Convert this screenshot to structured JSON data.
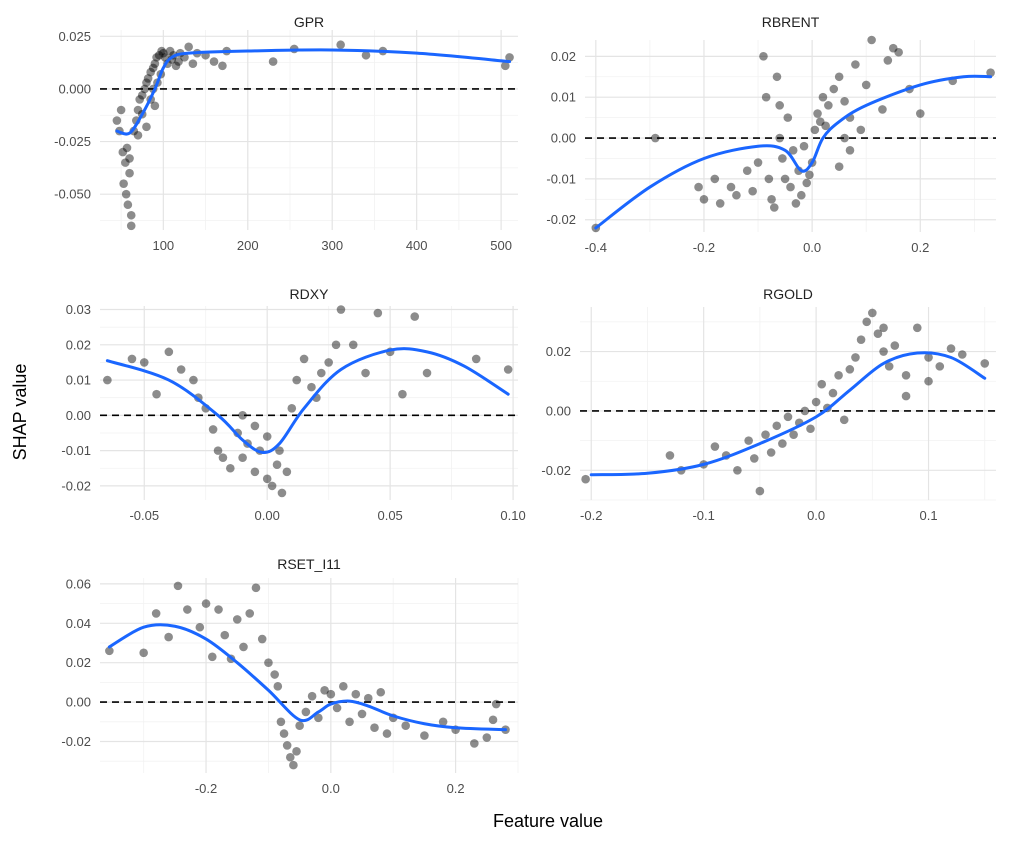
{
  "xlabel": "Feature value",
  "ylabel": "SHAP value",
  "chart_data": [
    {
      "type": "scatter",
      "title": "GPR",
      "xlim": [
        25,
        520
      ],
      "ylim": [
        -0.067,
        0.028
      ],
      "xticks": [
        100,
        200,
        300,
        400,
        500
      ],
      "yticks": [
        -0.05,
        -0.025,
        0,
        0.025
      ],
      "ytick_labels": [
        "-0.050",
        "-0.025",
        "0.000",
        "0.025"
      ],
      "hline": 0,
      "points": [
        [
          45,
          -0.015
        ],
        [
          48,
          -0.02
        ],
        [
          50,
          -0.01
        ],
        [
          52,
          -0.03
        ],
        [
          53,
          -0.045
        ],
        [
          55,
          -0.035
        ],
        [
          56,
          -0.05
        ],
        [
          58,
          -0.055
        ],
        [
          60,
          -0.04
        ],
        [
          62,
          -0.065
        ],
        [
          62,
          -0.06
        ],
        [
          60,
          -0.033
        ],
        [
          57,
          -0.028
        ],
        [
          65,
          -0.02
        ],
        [
          68,
          -0.015
        ],
        [
          70,
          -0.01
        ],
        [
          72,
          -0.005
        ],
        [
          75,
          -0.003
        ],
        [
          78,
          0.0
        ],
        [
          80,
          0.003
        ],
        [
          82,
          0.005
        ],
        [
          85,
          0.008
        ],
        [
          88,
          0.01
        ],
        [
          90,
          0.012
        ],
        [
          92,
          0.015
        ],
        [
          95,
          0.016
        ],
        [
          98,
          0.018
        ],
        [
          100,
          0.017
        ],
        [
          102,
          0.015
        ],
        [
          105,
          0.012
        ],
        [
          108,
          0.018
        ],
        [
          110,
          0.014
        ],
        [
          112,
          0.016
        ],
        [
          115,
          0.011
        ],
        [
          118,
          0.013
        ],
        [
          120,
          0.017
        ],
        [
          125,
          0.015
        ],
        [
          130,
          0.02
        ],
        [
          135,
          0.012
        ],
        [
          140,
          0.017
        ],
        [
          150,
          0.016
        ],
        [
          160,
          0.013
        ],
        [
          170,
          0.011
        ],
        [
          175,
          0.018
        ],
        [
          230,
          0.013
        ],
        [
          255,
          0.019
        ],
        [
          310,
          0.021
        ],
        [
          340,
          0.016
        ],
        [
          360,
          0.018
        ],
        [
          505,
          0.011
        ],
        [
          510,
          0.015
        ],
        [
          85,
          -0.005
        ],
        [
          88,
          0.0
        ],
        [
          90,
          -0.008
        ],
        [
          93,
          0.003
        ],
        [
          97,
          0.007
        ],
        [
          80,
          -0.018
        ],
        [
          75,
          -0.012
        ],
        [
          70,
          -0.022
        ]
      ],
      "smooth": [
        [
          45,
          -0.02
        ],
        [
          60,
          -0.021
        ],
        [
          75,
          -0.012
        ],
        [
          90,
          0.0
        ],
        [
          100,
          0.01
        ],
        [
          110,
          0.015
        ],
        [
          130,
          0.017
        ],
        [
          200,
          0.018
        ],
        [
          300,
          0.0185
        ],
        [
          400,
          0.017
        ],
        [
          510,
          0.013
        ]
      ]
    },
    {
      "type": "scatter",
      "title": "RBRENT",
      "xlim": [
        -0.42,
        0.34
      ],
      "ylim": [
        -0.023,
        0.024
      ],
      "xticks": [
        -0.4,
        -0.2,
        0.0,
        0.2
      ],
      "xtick_labels": [
        "-0.4",
        "-0.2",
        "0.0",
        "0.2"
      ],
      "yticks": [
        -0.02,
        -0.01,
        0,
        0.01,
        0.02
      ],
      "ytick_labels": [
        "-0.02",
        "-0.01",
        "0.00",
        "0.01",
        "0.02"
      ],
      "hline": 0,
      "points": [
        [
          -0.4,
          -0.022
        ],
        [
          -0.29,
          0.0
        ],
        [
          -0.21,
          -0.012
        ],
        [
          -0.2,
          -0.015
        ],
        [
          -0.18,
          -0.01
        ],
        [
          -0.17,
          -0.016
        ],
        [
          -0.15,
          -0.012
        ],
        [
          -0.14,
          -0.014
        ],
        [
          -0.12,
          -0.008
        ],
        [
          -0.11,
          -0.013
        ],
        [
          -0.1,
          -0.006
        ],
        [
          -0.09,
          0.02
        ],
        [
          -0.085,
          0.01
        ],
        [
          -0.08,
          -0.01
        ],
        [
          -0.075,
          -0.015
        ],
        [
          -0.07,
          -0.017
        ],
        [
          -0.065,
          0.015
        ],
        [
          -0.06,
          0.0
        ],
        [
          -0.06,
          0.008
        ],
        [
          -0.055,
          -0.005
        ],
        [
          -0.05,
          -0.01
        ],
        [
          -0.045,
          0.005
        ],
        [
          -0.04,
          -0.012
        ],
        [
          -0.035,
          -0.003
        ],
        [
          -0.03,
          -0.016
        ],
        [
          -0.025,
          -0.008
        ],
        [
          -0.02,
          -0.014
        ],
        [
          -0.015,
          -0.002
        ],
        [
          -0.01,
          -0.011
        ],
        [
          -0.005,
          -0.009
        ],
        [
          0.0,
          -0.006
        ],
        [
          0.005,
          0.002
        ],
        [
          0.01,
          0.006
        ],
        [
          0.015,
          0.004
        ],
        [
          0.02,
          0.01
        ],
        [
          0.025,
          0.003
        ],
        [
          0.03,
          0.008
        ],
        [
          0.04,
          0.012
        ],
        [
          0.05,
          0.015
        ],
        [
          0.06,
          0.009
        ],
        [
          0.07,
          0.005
        ],
        [
          0.08,
          0.018
        ],
        [
          0.09,
          0.002
        ],
        [
          0.1,
          0.013
        ],
        [
          0.11,
          0.024
        ],
        [
          0.13,
          0.007
        ],
        [
          0.14,
          0.019
        ],
        [
          0.15,
          0.022
        ],
        [
          0.16,
          0.021
        ],
        [
          0.18,
          0.012
        ],
        [
          0.2,
          0.006
        ],
        [
          0.26,
          0.014
        ],
        [
          0.33,
          0.016
        ],
        [
          0.06,
          0.0
        ],
        [
          0.07,
          -0.003
        ],
        [
          0.05,
          -0.007
        ]
      ],
      "smooth": [
        [
          -0.4,
          -0.022
        ],
        [
          -0.3,
          -0.012
        ],
        [
          -0.2,
          -0.005
        ],
        [
          -0.1,
          -0.002
        ],
        [
          -0.05,
          -0.003
        ],
        [
          -0.02,
          -0.008
        ],
        [
          0.0,
          -0.006
        ],
        [
          0.02,
          0.0
        ],
        [
          0.05,
          0.004
        ],
        [
          0.1,
          0.008
        ],
        [
          0.2,
          0.013
        ],
        [
          0.28,
          0.015
        ],
        [
          0.33,
          0.015
        ]
      ]
    },
    {
      "type": "scatter",
      "title": "RDXY",
      "xlim": [
        -0.068,
        0.102
      ],
      "ylim": [
        -0.024,
        0.031
      ],
      "xticks": [
        -0.05,
        0.0,
        0.05,
        0.1
      ],
      "xtick_labels": [
        "-0.05",
        "0.00",
        "0.05",
        "0.10"
      ],
      "yticks": [
        -0.02,
        -0.01,
        0,
        0.01,
        0.02,
        0.03
      ],
      "ytick_labels": [
        "-0.02",
        "-0.01",
        "0.00",
        "0.01",
        "0.02",
        "0.03"
      ],
      "hline": 0,
      "points": [
        [
          -0.065,
          0.01
        ],
        [
          -0.055,
          0.016
        ],
        [
          -0.05,
          0.015
        ],
        [
          -0.045,
          0.006
        ],
        [
          -0.04,
          0.018
        ],
        [
          -0.035,
          0.013
        ],
        [
          -0.03,
          0.01
        ],
        [
          -0.028,
          0.005
        ],
        [
          -0.025,
          0.002
        ],
        [
          -0.022,
          -0.004
        ],
        [
          -0.02,
          -0.01
        ],
        [
          -0.018,
          -0.012
        ],
        [
          -0.015,
          -0.015
        ],
        [
          -0.012,
          -0.005
        ],
        [
          -0.01,
          -0.012
        ],
        [
          -0.008,
          -0.008
        ],
        [
          -0.005,
          -0.016
        ],
        [
          -0.003,
          -0.01
        ],
        [
          0.0,
          -0.018
        ],
        [
          0.002,
          -0.02
        ],
        [
          0.004,
          -0.014
        ],
        [
          0.006,
          -0.022
        ],
        [
          0.008,
          -0.016
        ],
        [
          0.01,
          0.002
        ],
        [
          0.012,
          0.01
        ],
        [
          0.015,
          0.016
        ],
        [
          0.018,
          0.008
        ],
        [
          0.02,
          0.005
        ],
        [
          0.022,
          0.012
        ],
        [
          0.025,
          0.015
        ],
        [
          0.028,
          0.02
        ],
        [
          0.03,
          0.03
        ],
        [
          0.035,
          0.02
        ],
        [
          0.04,
          0.012
        ],
        [
          0.045,
          0.029
        ],
        [
          0.05,
          0.018
        ],
        [
          0.055,
          0.006
        ],
        [
          0.06,
          0.028
        ],
        [
          0.065,
          0.012
        ],
        [
          0.085,
          0.016
        ],
        [
          0.098,
          0.013
        ],
        [
          -0.01,
          0.0
        ],
        [
          -0.005,
          -0.003
        ],
        [
          0.0,
          -0.006
        ],
        [
          0.005,
          -0.01
        ]
      ],
      "smooth": [
        [
          -0.065,
          0.0155
        ],
        [
          -0.04,
          0.01
        ],
        [
          -0.02,
          0.0
        ],
        [
          -0.01,
          -0.007
        ],
        [
          -0.002,
          -0.0105
        ],
        [
          0.005,
          -0.008
        ],
        [
          0.015,
          0.002
        ],
        [
          0.03,
          0.013
        ],
        [
          0.05,
          0.0185
        ],
        [
          0.065,
          0.018
        ],
        [
          0.08,
          0.014
        ],
        [
          0.098,
          0.006
        ]
      ]
    },
    {
      "type": "scatter",
      "title": "RGOLD",
      "xlim": [
        -0.21,
        0.16
      ],
      "ylim": [
        -0.03,
        0.035
      ],
      "xticks": [
        -0.2,
        -0.1,
        0.0,
        0.1
      ],
      "xtick_labels": [
        "-0.2",
        "-0.1",
        "0.0",
        "0.1"
      ],
      "yticks": [
        -0.02,
        0,
        0.02
      ],
      "ytick_labels": [
        "-0.02",
        "0.00",
        "0.02"
      ],
      "hline": 0,
      "points": [
        [
          -0.205,
          -0.023
        ],
        [
          -0.13,
          -0.015
        ],
        [
          -0.12,
          -0.02
        ],
        [
          -0.1,
          -0.018
        ],
        [
          -0.09,
          -0.012
        ],
        [
          -0.08,
          -0.015
        ],
        [
          -0.07,
          -0.02
        ],
        [
          -0.06,
          -0.01
        ],
        [
          -0.055,
          -0.016
        ],
        [
          -0.05,
          -0.027
        ],
        [
          -0.045,
          -0.008
        ],
        [
          -0.04,
          -0.014
        ],
        [
          -0.035,
          -0.005
        ],
        [
          -0.03,
          -0.011
        ],
        [
          -0.025,
          -0.002
        ],
        [
          -0.02,
          -0.008
        ],
        [
          -0.015,
          -0.004
        ],
        [
          -0.01,
          0.0
        ],
        [
          -0.005,
          -0.006
        ],
        [
          0.0,
          0.003
        ],
        [
          0.005,
          0.009
        ],
        [
          0.01,
          0.001
        ],
        [
          0.015,
          0.006
        ],
        [
          0.02,
          0.012
        ],
        [
          0.025,
          -0.003
        ],
        [
          0.03,
          0.014
        ],
        [
          0.035,
          0.018
        ],
        [
          0.04,
          0.024
        ],
        [
          0.045,
          0.03
        ],
        [
          0.05,
          0.033
        ],
        [
          0.055,
          0.026
        ],
        [
          0.06,
          0.02
        ],
        [
          0.065,
          0.015
        ],
        [
          0.07,
          0.022
        ],
        [
          0.08,
          0.012
        ],
        [
          0.09,
          0.028
        ],
        [
          0.1,
          0.018
        ],
        [
          0.11,
          0.015
        ],
        [
          0.12,
          0.021
        ],
        [
          0.13,
          0.019
        ],
        [
          0.15,
          0.016
        ],
        [
          0.06,
          0.028
        ],
        [
          0.08,
          0.005
        ],
        [
          0.1,
          0.01
        ]
      ],
      "smooth": [
        [
          -0.2,
          -0.0215
        ],
        [
          -0.15,
          -0.021
        ],
        [
          -0.1,
          -0.018
        ],
        [
          -0.05,
          -0.011
        ],
        [
          0.0,
          -0.002
        ],
        [
          0.03,
          0.007
        ],
        [
          0.06,
          0.016
        ],
        [
          0.09,
          0.0195
        ],
        [
          0.12,
          0.018
        ],
        [
          0.15,
          0.011
        ]
      ]
    },
    {
      "type": "scatter",
      "title": "RSET_I11",
      "xlim": [
        -0.37,
        0.3
      ],
      "ylim": [
        -0.036,
        0.063
      ],
      "xticks": [
        -0.2,
        0.0,
        0.2
      ],
      "xtick_labels": [
        "-0.2",
        "0.0",
        "0.2"
      ],
      "yticks": [
        -0.02,
        0,
        0.02,
        0.04,
        0.06
      ],
      "ytick_labels": [
        "-0.02",
        "0.00",
        "0.02",
        "0.04",
        "0.06"
      ],
      "hline": 0,
      "points": [
        [
          -0.355,
          0.026
        ],
        [
          -0.3,
          0.025
        ],
        [
          -0.28,
          0.045
        ],
        [
          -0.26,
          0.033
        ],
        [
          -0.245,
          0.059
        ],
        [
          -0.23,
          0.047
        ],
        [
          -0.21,
          0.038
        ],
        [
          -0.2,
          0.05
        ],
        [
          -0.19,
          0.023
        ],
        [
          -0.18,
          0.047
        ],
        [
          -0.17,
          0.034
        ],
        [
          -0.16,
          0.022
        ],
        [
          -0.15,
          0.042
        ],
        [
          -0.14,
          0.028
        ],
        [
          -0.13,
          0.045
        ],
        [
          -0.12,
          0.058
        ],
        [
          -0.11,
          0.032
        ],
        [
          -0.1,
          0.02
        ],
        [
          -0.09,
          0.014
        ],
        [
          -0.085,
          0.008
        ],
        [
          -0.08,
          -0.01
        ],
        [
          -0.075,
          -0.016
        ],
        [
          -0.07,
          -0.022
        ],
        [
          -0.065,
          -0.028
        ],
        [
          -0.06,
          -0.032
        ],
        [
          -0.055,
          -0.025
        ],
        [
          -0.05,
          -0.012
        ],
        [
          -0.04,
          -0.005
        ],
        [
          -0.03,
          0.003
        ],
        [
          -0.02,
          -0.008
        ],
        [
          -0.01,
          0.006
        ],
        [
          0.0,
          0.004
        ],
        [
          0.01,
          -0.003
        ],
        [
          0.02,
          0.008
        ],
        [
          0.03,
          -0.01
        ],
        [
          0.04,
          0.004
        ],
        [
          0.05,
          -0.006
        ],
        [
          0.06,
          0.002
        ],
        [
          0.07,
          -0.013
        ],
        [
          0.08,
          0.005
        ],
        [
          0.09,
          -0.016
        ],
        [
          0.1,
          -0.008
        ],
        [
          0.12,
          -0.012
        ],
        [
          0.15,
          -0.017
        ],
        [
          0.18,
          -0.01
        ],
        [
          0.2,
          -0.014
        ],
        [
          0.23,
          -0.021
        ],
        [
          0.25,
          -0.018
        ],
        [
          0.26,
          -0.009
        ],
        [
          0.265,
          -0.001
        ],
        [
          0.28,
          -0.014
        ]
      ],
      "smooth": [
        [
          -0.355,
          0.028
        ],
        [
          -0.3,
          0.038
        ],
        [
          -0.25,
          0.0385
        ],
        [
          -0.2,
          0.032
        ],
        [
          -0.15,
          0.02
        ],
        [
          -0.1,
          0.006
        ],
        [
          -0.05,
          -0.009
        ],
        [
          -0.02,
          -0.005
        ],
        [
          0.0,
          -0.001
        ],
        [
          0.03,
          0.0005
        ],
        [
          0.06,
          -0.002
        ],
        [
          0.1,
          -0.007
        ],
        [
          0.15,
          -0.011
        ],
        [
          0.2,
          -0.013
        ],
        [
          0.28,
          -0.014
        ]
      ]
    }
  ]
}
